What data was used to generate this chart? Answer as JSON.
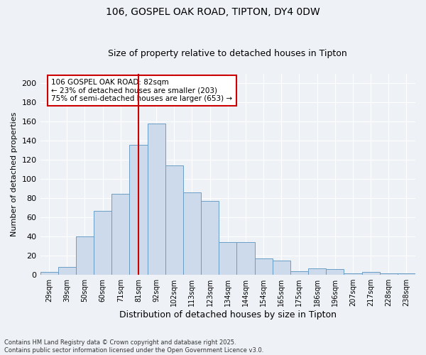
{
  "title": "106, GOSPEL OAK ROAD, TIPTON, DY4 0DW",
  "subtitle": "Size of property relative to detached houses in Tipton",
  "xlabel": "Distribution of detached houses by size in Tipton",
  "ylabel": "Number of detached properties",
  "bar_color": "#ccdaeb",
  "bar_edge_color": "#6a9ec5",
  "background_color": "#eef2f7",
  "grid_color": "#ffffff",
  "categories": [
    "29sqm",
    "39sqm",
    "50sqm",
    "60sqm",
    "71sqm",
    "81sqm",
    "92sqm",
    "102sqm",
    "113sqm",
    "123sqm",
    "134sqm",
    "144sqm",
    "154sqm",
    "165sqm",
    "175sqm",
    "186sqm",
    "196sqm",
    "207sqm",
    "217sqm",
    "228sqm",
    "238sqm"
  ],
  "values": [
    3,
    8,
    40,
    67,
    85,
    136,
    158,
    114,
    86,
    77,
    34,
    34,
    17,
    15,
    4,
    7,
    6,
    2,
    3,
    2,
    2
  ],
  "vline_color": "#cc0000",
  "vline_index": 5.5,
  "annotation_text": "106 GOSPEL OAK ROAD: 82sqm\n← 23% of detached houses are smaller (203)\n75% of semi-detached houses are larger (653) →",
  "ylim": [
    0,
    210
  ],
  "yticks": [
    0,
    20,
    40,
    60,
    80,
    100,
    120,
    140,
    160,
    180,
    200
  ],
  "footer": "Contains HM Land Registry data © Crown copyright and database right 2025.\nContains public sector information licensed under the Open Government Licence v3.0.",
  "title_fontsize": 10,
  "subtitle_fontsize": 9,
  "tick_fontsize": 7,
  "ylabel_fontsize": 8,
  "xlabel_fontsize": 9
}
